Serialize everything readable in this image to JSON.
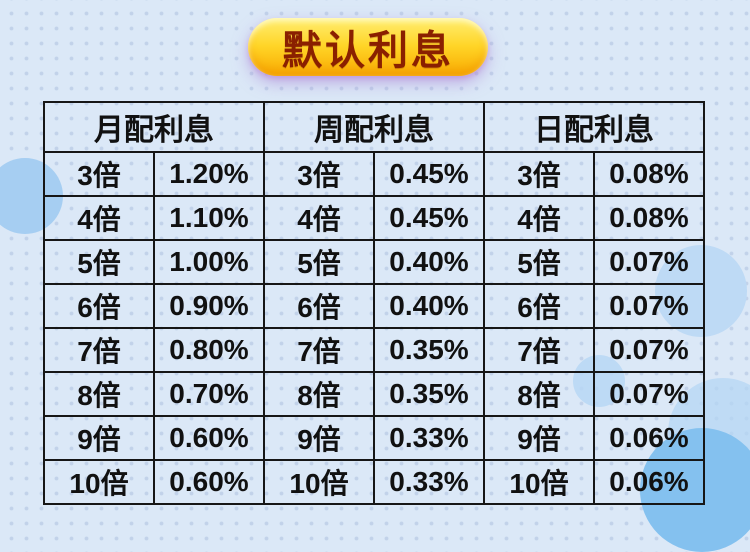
{
  "title": "默认利息",
  "table": {
    "headers": [
      "月配利息",
      "周配利息",
      "日配利息"
    ],
    "rows": [
      [
        "3倍",
        "1.20%",
        "3倍",
        "0.45%",
        "3倍",
        "0.08%"
      ],
      [
        "4倍",
        "1.10%",
        "4倍",
        "0.45%",
        "4倍",
        "0.08%"
      ],
      [
        "5倍",
        "1.00%",
        "5倍",
        "0.40%",
        "5倍",
        "0.07%"
      ],
      [
        "6倍",
        "0.90%",
        "6倍",
        "0.40%",
        "6倍",
        "0.07%"
      ],
      [
        "7倍",
        "0.80%",
        "7倍",
        "0.35%",
        "7倍",
        "0.07%"
      ],
      [
        "8倍",
        "0.70%",
        "8倍",
        "0.35%",
        "8倍",
        "0.07%"
      ],
      [
        "9倍",
        "0.60%",
        "9倍",
        "0.33%",
        "9倍",
        "0.06%"
      ],
      [
        "10倍",
        "0.60%",
        "10倍",
        "0.33%",
        "10倍",
        "0.06%"
      ]
    ]
  },
  "chart_data": {
    "type": "table",
    "title": "默认利息",
    "column_groups": [
      "月配利息",
      "周配利息",
      "日配利息"
    ],
    "multipliers": [
      3,
      4,
      5,
      6,
      7,
      8,
      9,
      10
    ],
    "multiplier_unit": "倍",
    "series": [
      {
        "name": "月配利息",
        "rates_pct": [
          1.2,
          1.1,
          1.0,
          0.9,
          0.8,
          0.7,
          0.6,
          0.6
        ]
      },
      {
        "name": "周配利息",
        "rates_pct": [
          0.45,
          0.45,
          0.4,
          0.4,
          0.35,
          0.35,
          0.33,
          0.33
        ]
      },
      {
        "name": "日配利息",
        "rates_pct": [
          0.08,
          0.08,
          0.07,
          0.07,
          0.07,
          0.07,
          0.06,
          0.06
        ]
      }
    ]
  },
  "colors": {
    "page_bg": "#dbe8f7",
    "badge_gold": "#ffd527",
    "badge_text": "#8a2000",
    "badge_shadow": "#a880d6",
    "table_border": "#161616",
    "circle_blue_strong": "#84c1ef",
    "circle_blue_soft": "#bedaf5"
  }
}
